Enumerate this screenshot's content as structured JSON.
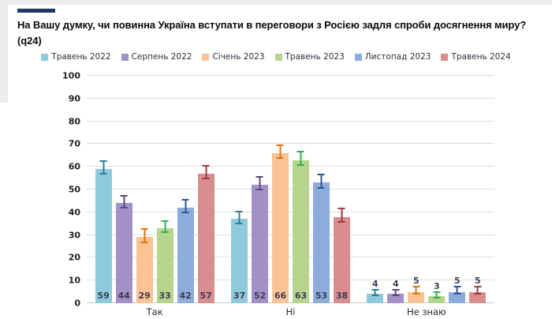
{
  "header": {
    "title_line1": "На Вашу думку, чи повинна Україна вступати в переговори з Росією задля спроби досягнення миру?",
    "title_line2": "(q24)",
    "accent_color": "#1f3864"
  },
  "chart_data": {
    "type": "bar",
    "title": "На Вашу думку, чи повинна Україна вступати в переговори з Росією задля спроби досягнення миру? (q24)",
    "categories": [
      "Так",
      "Ні",
      "Не знаю"
    ],
    "series": [
      {
        "name": "Травень 2022",
        "color": "#8ec9dc",
        "error_color": "#2e7f99",
        "values": [
          59,
          37,
          4
        ],
        "moe": [
          2.5,
          2.2,
          1.0
        ]
      },
      {
        "name": "Серпень 2022",
        "color": "#a291c6",
        "error_color": "#5b4a7d",
        "values": [
          44,
          52,
          4
        ],
        "moe": [
          2.2,
          2.5,
          1.0
        ]
      },
      {
        "name": "Січень 2023",
        "color": "#fbc395",
        "error_color": "#e0720f",
        "values": [
          29,
          66,
          5
        ],
        "moe": [
          2.5,
          2.3,
          1.3
        ]
      },
      {
        "name": "Травень 2023",
        "color": "#b7d48e",
        "error_color": "#2fae54",
        "values": [
          33,
          63,
          3
        ],
        "moe": [
          2.2,
          2.5,
          0.9
        ]
      },
      {
        "name": "Листопад 2023",
        "color": "#8cacdc",
        "error_color": "#2e5694",
        "values": [
          42,
          53,
          5
        ],
        "moe": [
          2.3,
          2.5,
          1.2
        ]
      },
      {
        "name": "Травень 2024",
        "color": "#d98d8f",
        "error_color": "#9c3a38",
        "values": [
          57,
          38,
          5
        ],
        "moe": [
          2.5,
          2.5,
          1.2
        ]
      }
    ],
    "ylim": [
      0,
      100
    ],
    "ytick_step": 10,
    "grid": true,
    "error_bars": true,
    "legend_position": "top",
    "value_label_rule": "inside bottom of bar if value >= 10, otherwise above error whisker"
  }
}
